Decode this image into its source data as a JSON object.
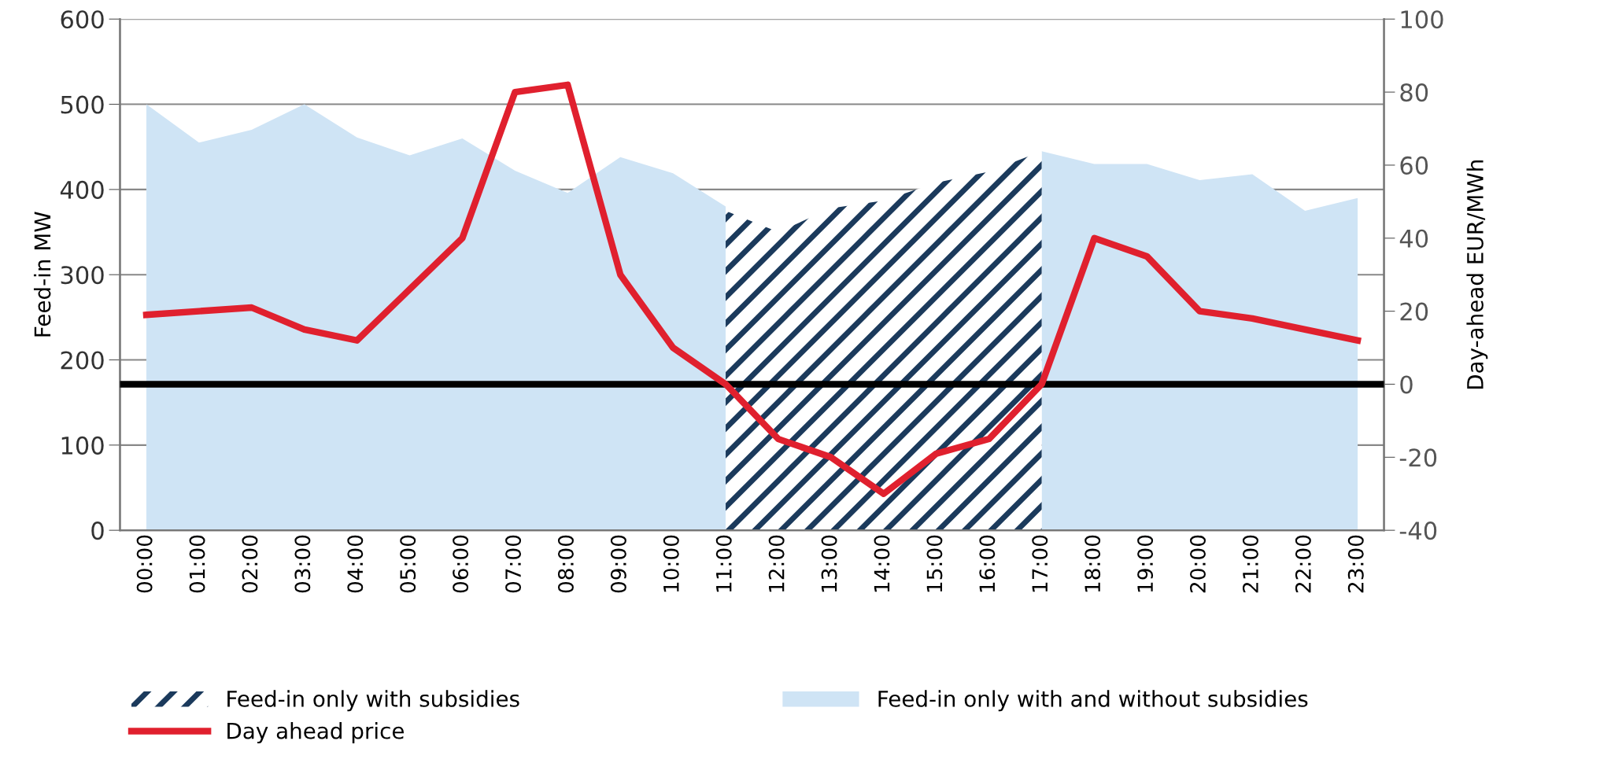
{
  "chart_data": {
    "type": "area",
    "categories": [
      "00:00",
      "01:00",
      "02:00",
      "03:00",
      "04:00",
      "05:00",
      "06:00",
      "07:00",
      "08:00",
      "09:00",
      "10:00",
      "11:00",
      "12:00",
      "13:00",
      "14:00",
      "15:00",
      "16:00",
      "17:00",
      "18:00",
      "19:00",
      "20:00",
      "21:00",
      "22:00",
      "23:00"
    ],
    "ylabel": "Feed-in MW",
    "y2label": "Day-ahead EUR/MWh",
    "ylim": [
      0,
      600
    ],
    "yticks": [
      0,
      100,
      200,
      300,
      400,
      500,
      600
    ],
    "y2lim": [
      -40,
      100
    ],
    "y2ticks": [
      -40,
      -20,
      0,
      20,
      40,
      60,
      80,
      100
    ],
    "grid": "y",
    "legend": "bottom",
    "ref_lines": [
      {
        "axis": "y2",
        "value": 0,
        "color": "#000000"
      }
    ],
    "series": [
      {
        "name": "Feed-in only with and without subsidies",
        "color": "#cfe4f5",
        "values": [
          500,
          455,
          470,
          500,
          461,
          440,
          460,
          422,
          396,
          438,
          419,
          380,
          null,
          null,
          null,
          null,
          null,
          445,
          430,
          430,
          411,
          418,
          375,
          390
        ]
      },
      {
        "name": "Feed-in only with subsidies",
        "color": "#1b3a5c",
        "values": [
          null,
          null,
          null,
          null,
          null,
          null,
          null,
          null,
          null,
          null,
          null,
          375,
          350,
          378,
          387,
          408,
          421,
          445,
          null,
          null,
          null,
          null,
          null,
          null
        ]
      },
      {
        "name": "Day ahead price",
        "type": "line",
        "axis": "y2",
        "color": "#e0202e",
        "values": [
          19,
          20,
          21,
          15,
          12,
          26,
          40,
          80,
          82,
          30,
          10,
          0,
          -15,
          -20,
          -30,
          -19,
          -15,
          0,
          40,
          35,
          20,
          18,
          15,
          12
        ]
      }
    ]
  }
}
